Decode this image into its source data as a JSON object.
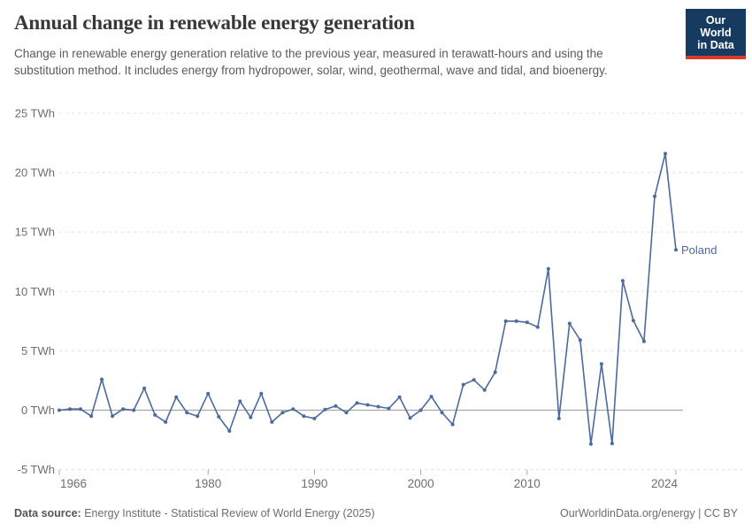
{
  "header": {
    "title": "Annual change in renewable energy generation",
    "subtitle": "Change in renewable energy generation relative to the previous year, measured in terawatt-hours and using the substitution method. It includes energy from hydropower, solar, wind, geothermal, wave and tidal, and bioenergy.",
    "logo": {
      "line1": "Our World",
      "line2": "in Data"
    }
  },
  "chart_data": {
    "type": "line",
    "title": "Annual change in renewable energy generation",
    "ylabel": "TWh",
    "xlabel": "",
    "ylim": [
      -5,
      25
    ],
    "xlim": [
      1966,
      2024
    ],
    "grid": "horizontal dashed",
    "legend_position": "end-of-line label",
    "entity_label": "Poland",
    "yticks": [
      {
        "value": -5,
        "label": "-5 TWh"
      },
      {
        "value": 0,
        "label": "0 TWh"
      },
      {
        "value": 5,
        "label": "5 TWh"
      },
      {
        "value": 10,
        "label": "10 TWh"
      },
      {
        "value": 15,
        "label": "15 TWh"
      },
      {
        "value": 20,
        "label": "20 TWh"
      },
      {
        "value": 25,
        "label": "25 TWh"
      }
    ],
    "xticks": [
      {
        "value": 1966,
        "label": "1966"
      },
      {
        "value": 1980,
        "label": "1980"
      },
      {
        "value": 1990,
        "label": "1990"
      },
      {
        "value": 2000,
        "label": "2000"
      },
      {
        "value": 2010,
        "label": "2010"
      },
      {
        "value": 2024,
        "label": "2024"
      }
    ],
    "x": [
      1966,
      1967,
      1968,
      1969,
      1970,
      1971,
      1972,
      1973,
      1974,
      1975,
      1976,
      1977,
      1978,
      1979,
      1980,
      1981,
      1982,
      1983,
      1984,
      1985,
      1986,
      1987,
      1988,
      1989,
      1990,
      1991,
      1992,
      1993,
      1994,
      1995,
      1996,
      1997,
      1998,
      1999,
      2000,
      2001,
      2002,
      2003,
      2004,
      2005,
      2006,
      2007,
      2008,
      2009,
      2010,
      2011,
      2012,
      2013,
      2014,
      2015,
      2016,
      2017,
      2018,
      2019,
      2020,
      2021,
      2022,
      2023,
      2024
    ],
    "series": [
      {
        "name": "Poland",
        "color": "#4c6a9c",
        "values": [
          0,
          0.1,
          0.1,
          -0.5,
          2.6,
          -0.5,
          0.1,
          0,
          1.85,
          -0.4,
          -1,
          1.1,
          -0.2,
          -0.5,
          1.4,
          -0.55,
          -1.75,
          0.75,
          -0.6,
          1.4,
          -1,
          -0.2,
          0.1,
          -0.5,
          -0.7,
          0.05,
          0.35,
          -0.2,
          0.6,
          0.45,
          0.3,
          0.15,
          1.1,
          -0.65,
          0,
          1.15,
          -0.2,
          -1.2,
          2.15,
          2.55,
          1.7,
          3.2,
          7.5,
          7.5,
          7.4,
          7,
          11.9,
          -0.7,
          7.3,
          5.9,
          -2.85,
          3.9,
          -2.8,
          10.9,
          7.55,
          5.8,
          18,
          21.6,
          13.5
        ]
      }
    ],
    "colors": {
      "line": "#4c6a9c",
      "gridline": "#e0e0e0",
      "zero_line": "#a8a8a8",
      "axis_text": "#6e6e6e"
    }
  },
  "footer": {
    "datasource_label": "Data source:",
    "datasource_text": "Energy Institute - Statistical Review of World Energy (2025)",
    "credit": "OurWorldinData.org/energy | CC BY"
  }
}
